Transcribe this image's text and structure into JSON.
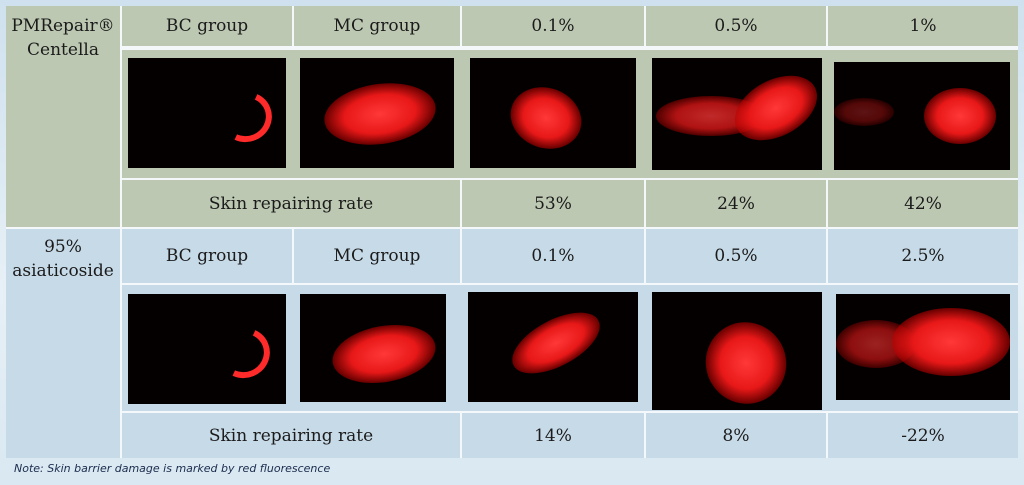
{
  "sections": [
    {
      "name_lines": [
        "PMRepair®",
        "Centella"
      ],
      "headers": [
        "BC group",
        "MC group",
        "0.1%",
        "0.5%",
        "1%"
      ],
      "rate_label": "Skin repairing rate",
      "rates": [
        "53%",
        "24%",
        "42%"
      ]
    },
    {
      "name_lines": [
        "95%",
        "asiaticoside"
      ],
      "headers": [
        "BC group",
        "MC group",
        "0.1%",
        "0.5%",
        "2.5%"
      ],
      "rate_label": "Skin repairing rate",
      "rates": [
        "14%",
        "8%",
        "-22%"
      ]
    }
  ],
  "note": "Note: Skin barrier damage is marked by red fluorescence",
  "colors": {
    "top_section_bg": "#bcc8b2",
    "bottom_section_bg": "#c7dae8",
    "fluorescence": "#ff2020"
  },
  "images": [
    "fluorescence-photo-bc-group",
    "fluorescence-photo-mc-group",
    "fluorescence-photo-0.1",
    "fluorescence-photo-0.5",
    "fluorescence-photo-1"
  ]
}
